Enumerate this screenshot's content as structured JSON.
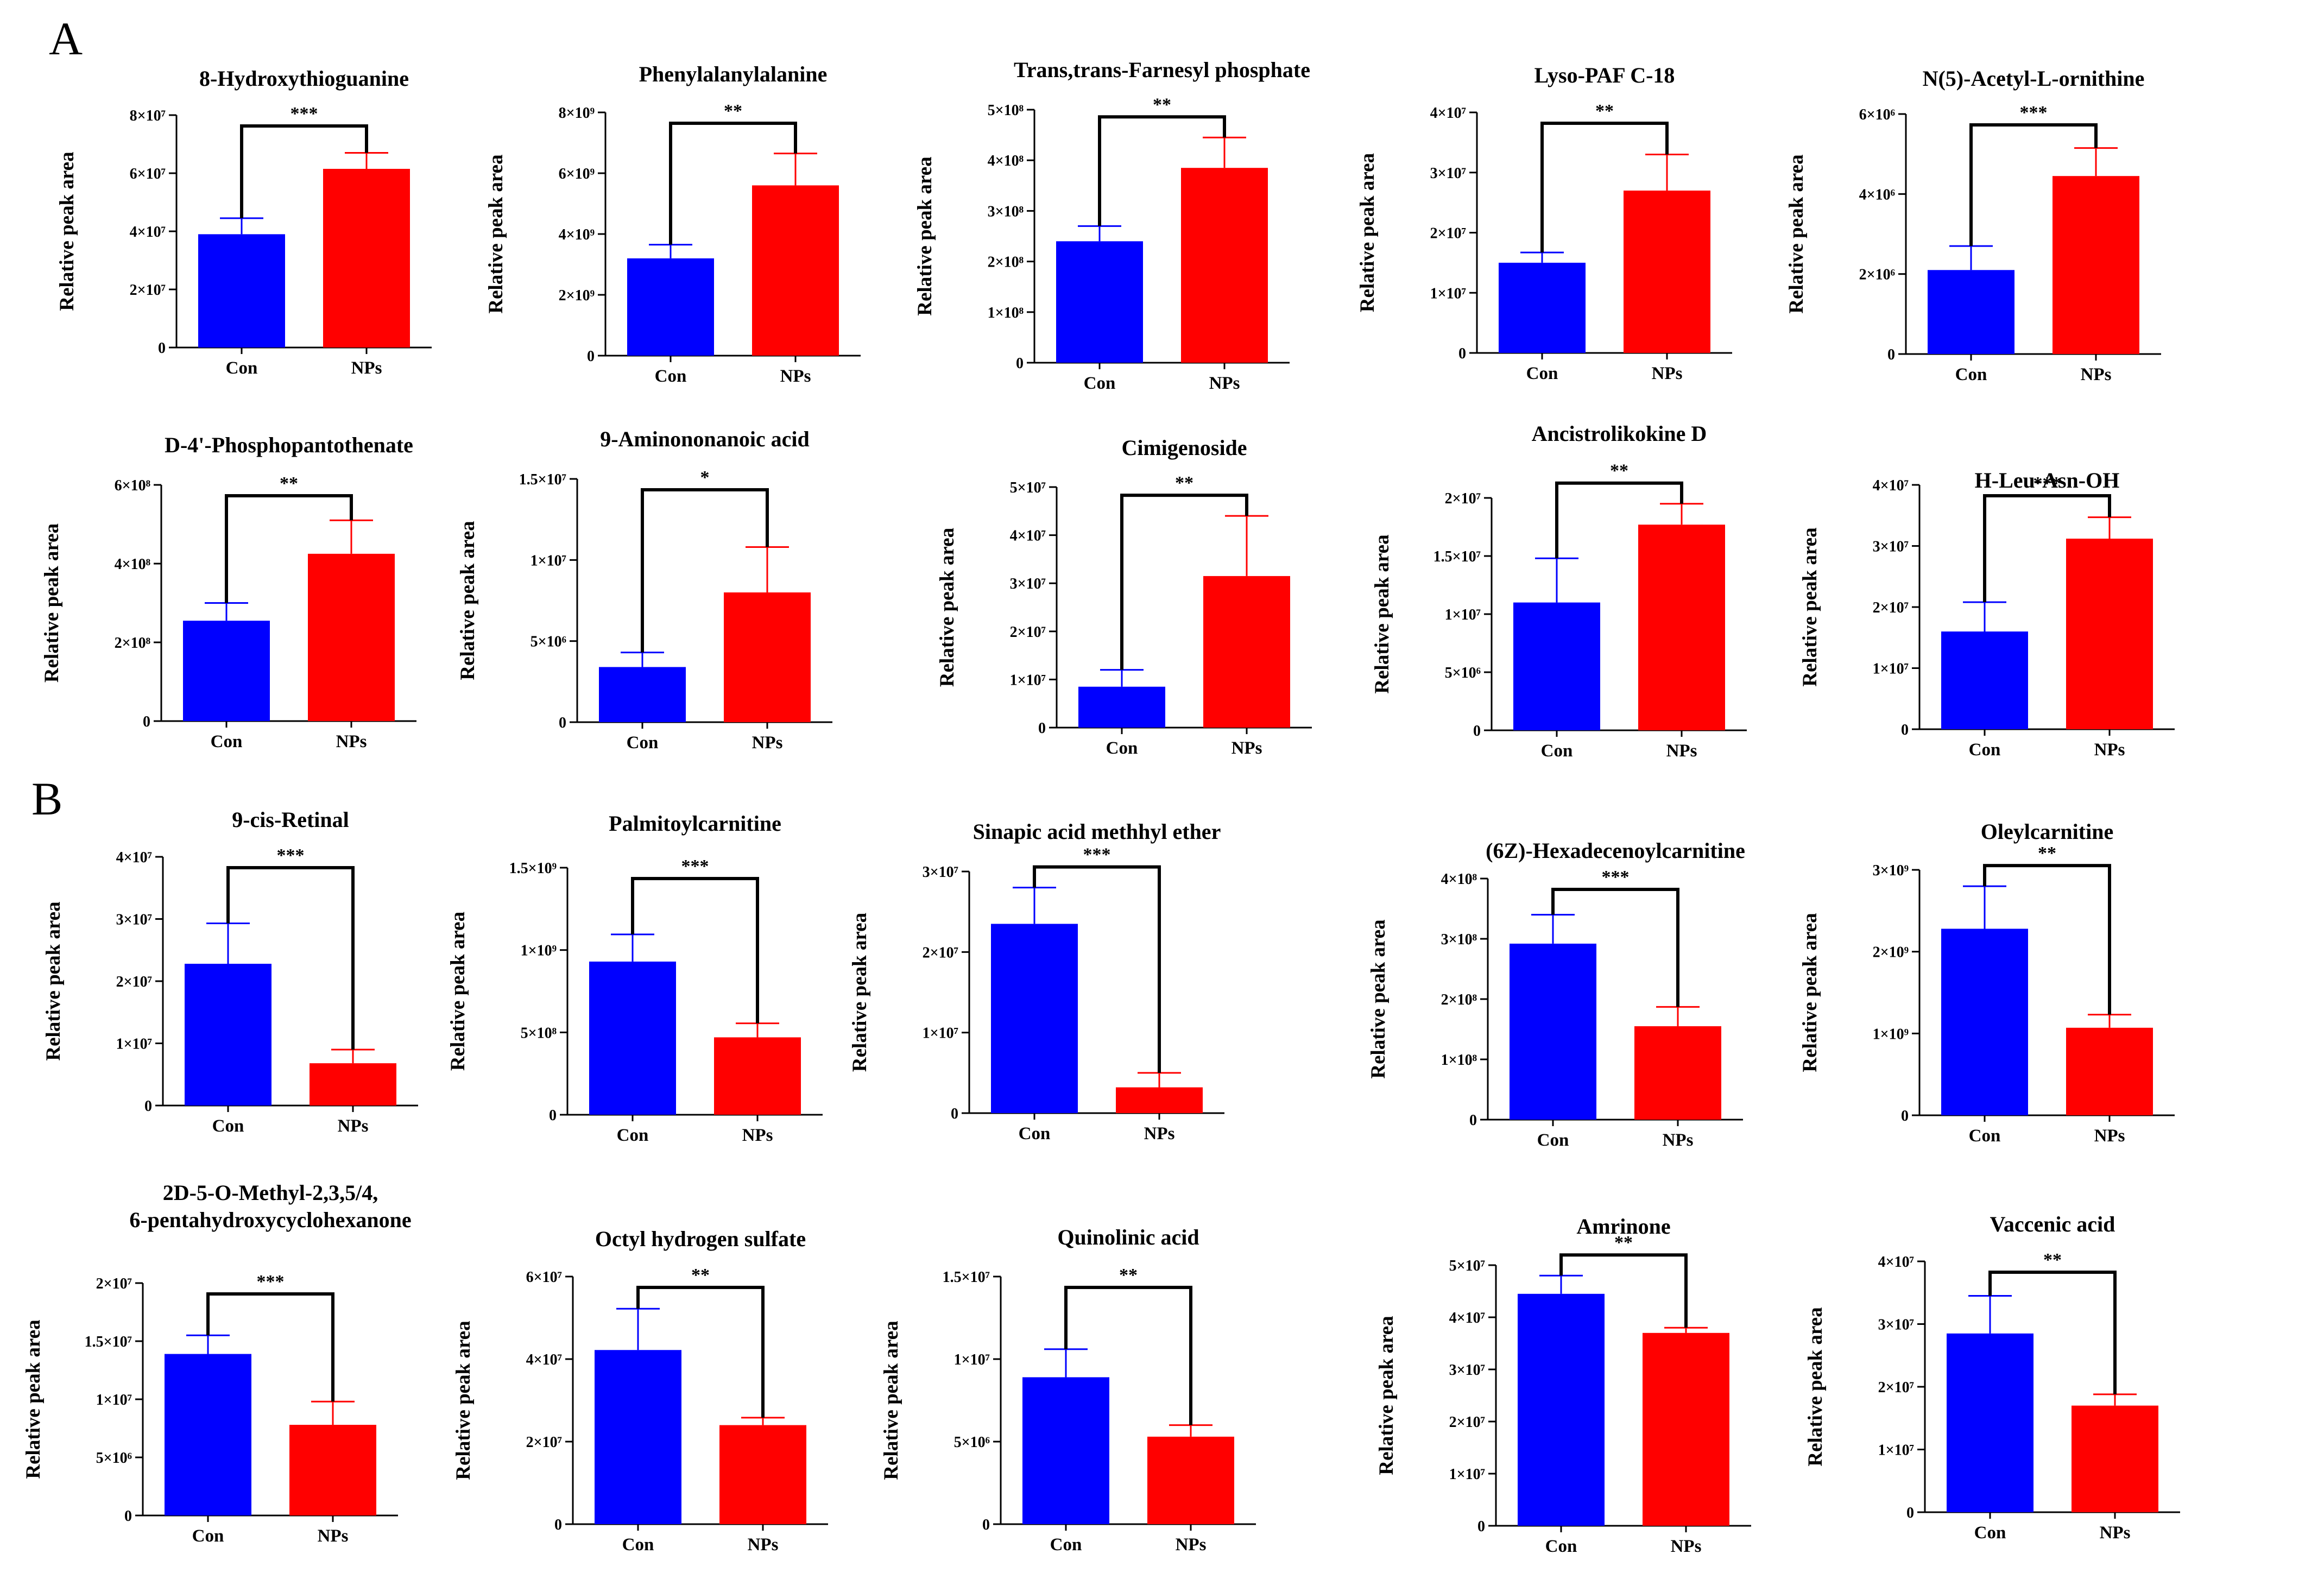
{
  "panel_labels": [
    "A",
    "B"
  ],
  "group_colors": {
    "Con": "#0000ff",
    "NPs": "#ff0000"
  },
  "y_axis_label": "Relative peak area",
  "chart_data": [
    {
      "type": "bar",
      "panel": "A",
      "title": "8-Hydroxythioguanine",
      "title2": "",
      "categories": [
        "Con",
        "NPs"
      ],
      "values": [
        39000000.0,
        61500000.0
      ],
      "errors": [
        5500000.0,
        5500000.0
      ],
      "ylim": [
        0,
        80000000.0
      ],
      "yticks": [
        0,
        20000000.0,
        40000000.0,
        60000000.0,
        80000000.0
      ],
      "ytick_labels": [
        "0",
        "2×10⁷",
        "4×10⁷",
        "6×10⁷",
        "8×10⁷"
      ],
      "significance": "***",
      "ylabel": "Relative peak area"
    },
    {
      "type": "bar",
      "panel": "A",
      "title": "Phenylalanylalanine",
      "title2": "",
      "categories": [
        "Con",
        "NPs"
      ],
      "values": [
        3200000000.0,
        5600000000.0
      ],
      "errors": [
        450000000.0,
        1050000000.0
      ],
      "ylim": [
        0,
        8000000000.0
      ],
      "yticks": [
        0,
        2000000000.0,
        4000000000.0,
        6000000000.0,
        8000000000.0
      ],
      "ytick_labels": [
        "0",
        "2×10⁹",
        "4×10⁹",
        "6×10⁹",
        "8×10⁹"
      ],
      "significance": "**",
      "ylabel": "Relative peak area"
    },
    {
      "type": "bar",
      "panel": "A",
      "title": "Trans,trans-Farnesyl phosphate",
      "title2": "",
      "categories": [
        "Con",
        "NPs"
      ],
      "values": [
        240000000.0,
        385000000.0
      ],
      "errors": [
        30000000.0,
        60000000.0
      ],
      "ylim": [
        0,
        500000000.0
      ],
      "yticks": [
        0,
        100000000.0,
        200000000.0,
        300000000.0,
        400000000.0,
        500000000.0
      ],
      "ytick_labels": [
        "0",
        "1×10⁸",
        "2×10⁸",
        "3×10⁸",
        "4×10⁸",
        "5×10⁸"
      ],
      "significance": "**",
      "ylabel": "Relative peak area"
    },
    {
      "type": "bar",
      "panel": "A",
      "title": "Lyso-PAF C-18",
      "title2": "",
      "categories": [
        "Con",
        "NPs"
      ],
      "values": [
        15000000.0,
        27000000.0
      ],
      "errors": [
        1700000.0,
        6000000.0
      ],
      "ylim": [
        0,
        40000000.0
      ],
      "yticks": [
        0,
        10000000.0,
        20000000.0,
        30000000.0,
        40000000.0
      ],
      "ytick_labels": [
        "0",
        "1×10⁷",
        "2×10⁷",
        "3×10⁷",
        "4×10⁷"
      ],
      "significance": "**",
      "ylabel": "Relative peak area"
    },
    {
      "type": "bar",
      "panel": "A",
      "title": "N(5)-Acetyl-L-ornithine",
      "title2": "",
      "categories": [
        "Con",
        "NPs"
      ],
      "values": [
        2100000.0,
        4450000.0
      ],
      "errors": [
        600000.0,
        700000.0
      ],
      "ylim": [
        0,
        6000000.0
      ],
      "yticks": [
        0,
        2000000.0,
        4000000.0,
        6000000.0
      ],
      "ytick_labels": [
        "0",
        "2×10⁶",
        "4×10⁶",
        "6×10⁶"
      ],
      "significance": "***",
      "ylabel": "Relative peak area"
    },
    {
      "type": "bar",
      "panel": "A",
      "title": "D-4'-Phosphopantothenate",
      "title2": "",
      "categories": [
        "Con",
        "NPs"
      ],
      "values": [
        255000000.0,
        425000000.0
      ],
      "errors": [
        45000000.0,
        85000000.0
      ],
      "ylim": [
        0,
        600000000.0
      ],
      "yticks": [
        0,
        200000000.0,
        400000000.0,
        600000000.0
      ],
      "ytick_labels": [
        "0",
        "2×10⁸",
        "4×10⁸",
        "6×10⁸"
      ],
      "significance": "**",
      "ylabel": "Relative peak area"
    },
    {
      "type": "bar",
      "panel": "A",
      "title": "9-Aminononanoic acid",
      "title2": "",
      "categories": [
        "Con",
        "NPs"
      ],
      "values": [
        3400000.0,
        8000000.0
      ],
      "errors": [
        900000.0,
        2800000.0
      ],
      "ylim": [
        0,
        15000000.0
      ],
      "yticks": [
        0,
        5000000.0,
        10000000.0,
        15000000.0
      ],
      "ytick_labels": [
        "0",
        "5×10⁶",
        "1×10⁷",
        "1.5×10⁷"
      ],
      "significance": "*",
      "ylabel": "Relative peak area"
    },
    {
      "type": "bar",
      "panel": "A",
      "title": "Cimigenoside",
      "title2": "",
      "categories": [
        "Con",
        "NPs"
      ],
      "values": [
        8500000.0,
        31500000.0
      ],
      "errors": [
        3500000.0,
        12500000.0
      ],
      "ylim": [
        0,
        50000000.0
      ],
      "yticks": [
        0,
        10000000.0,
        20000000.0,
        30000000.0,
        40000000.0,
        50000000.0
      ],
      "ytick_labels": [
        "0",
        "1×10⁷",
        "2×10⁷",
        "3×10⁷",
        "4×10⁷",
        "5×10⁷"
      ],
      "significance": "**",
      "ylabel": "Relative peak area"
    },
    {
      "type": "bar",
      "panel": "A",
      "title": "Ancistrolikokine D",
      "title2": "",
      "categories": [
        "Con",
        "NPs"
      ],
      "values": [
        11000000.0,
        17700000.0
      ],
      "errors": [
        3800000.0,
        1800000.0
      ],
      "ylim": [
        0,
        20000000.0
      ],
      "yticks": [
        0,
        5000000.0,
        10000000.0,
        15000000.0,
        20000000.0
      ],
      "ytick_labels": [
        "0",
        "5×10⁶",
        "1×10⁷",
        "1.5×10⁷",
        "2×10⁷"
      ],
      "significance": "**",
      "ylabel": "Relative peak area"
    },
    {
      "type": "bar",
      "panel": "A",
      "title": "H-Leu-Asn-OH",
      "title2": "",
      "categories": [
        "Con",
        "NPs"
      ],
      "values": [
        16000000.0,
        31200000.0
      ],
      "errors": [
        4800000.0,
        3500000.0
      ],
      "ylim": [
        0,
        40000000.0
      ],
      "yticks": [
        0,
        10000000.0,
        20000000.0,
        30000000.0,
        40000000.0
      ],
      "ytick_labels": [
        "0",
        "1×10⁷",
        "2×10⁷",
        "3×10⁷",
        "4×10⁷"
      ],
      "significance": "***",
      "ylabel": "Relative peak area"
    },
    {
      "type": "bar",
      "panel": "B",
      "title": "9-cis-Retinal",
      "title2": "",
      "categories": [
        "Con",
        "NPs"
      ],
      "values": [
        22800000.0,
        6800000.0
      ],
      "errors": [
        6500000.0,
        2200000.0
      ],
      "ylim": [
        0,
        40000000.0
      ],
      "yticks": [
        0,
        10000000.0,
        20000000.0,
        30000000.0,
        40000000.0
      ],
      "ytick_labels": [
        "0",
        "1×10⁷",
        "2×10⁷",
        "3×10⁷",
        "4×10⁷"
      ],
      "significance": "***",
      "ylabel": "Relative peak area"
    },
    {
      "type": "bar",
      "panel": "B",
      "title": "Palmitoylcarnitine",
      "title2": "",
      "categories": [
        "Con",
        "NPs"
      ],
      "values": [
        930000000.0,
        470000000.0
      ],
      "errors": [
        165000000.0,
        85000000.0
      ],
      "ylim": [
        0,
        1500000000.0
      ],
      "yticks": [
        0,
        500000000.0,
        1000000000.0,
        1500000000.0
      ],
      "ytick_labels": [
        "0",
        "5×10⁸",
        "1×10⁹",
        "1.5×10⁹"
      ],
      "significance": "***",
      "ylabel": "Relative peak area"
    },
    {
      "type": "bar",
      "panel": "B",
      "title": "Sinapic acid methhyl ether",
      "title2": "",
      "categories": [
        "Con",
        "NPs"
      ],
      "values": [
        23500000.0,
        3200000.0
      ],
      "errors": [
        4500000.0,
        1800000.0
      ],
      "ylim": [
        0,
        30000000.0
      ],
      "yticks": [
        0,
        10000000.0,
        20000000.0,
        30000000.0
      ],
      "ytick_labels": [
        "0",
        "1×10⁷",
        "2×10⁷",
        "3×10⁷"
      ],
      "significance": "***",
      "ylabel": "Relative peak area"
    },
    {
      "type": "bar",
      "panel": "B",
      "title": "(6Z)-Hexadecenoylcarnitine",
      "title2": "",
      "categories": [
        "Con",
        "NPs"
      ],
      "values": [
        292000000.0,
        155000000.0
      ],
      "errors": [
        48000000.0,
        32000000.0
      ],
      "ylim": [
        0,
        400000000.0
      ],
      "yticks": [
        0,
        100000000.0,
        200000000.0,
        300000000.0,
        400000000.0
      ],
      "ytick_labels": [
        "0",
        "1×10⁸",
        "2×10⁸",
        "3×10⁸",
        "4×10⁸"
      ],
      "significance": "***",
      "ylabel": "Relative peak area"
    },
    {
      "type": "bar",
      "panel": "B",
      "title": "Oleylcarnitine",
      "title2": "",
      "categories": [
        "Con",
        "NPs"
      ],
      "values": [
        2280000000.0,
        1070000000.0
      ],
      "errors": [
        520000000.0,
        160000000.0
      ],
      "ylim": [
        0,
        3000000000.0
      ],
      "yticks": [
        0,
        1000000000.0,
        2000000000.0,
        3000000000.0
      ],
      "ytick_labels": [
        "0",
        "1×10⁹",
        "2×10⁹",
        "3×10⁹"
      ],
      "significance": "**",
      "ylabel": "Relative peak area"
    },
    {
      "type": "bar",
      "panel": "B",
      "title": "2D-5-O-Methyl-2,3,5/4,",
      "title2": "6-pentahydroxycyclohexanone",
      "categories": [
        "Con",
        "NPs"
      ],
      "values": [
        13900000.0,
        7800000.0
      ],
      "errors": [
        1600000.0,
        2000000.0
      ],
      "ylim": [
        0,
        20000000.0
      ],
      "yticks": [
        0,
        5000000.0,
        10000000.0,
        15000000.0,
        20000000.0
      ],
      "ytick_labels": [
        "0",
        "5×10⁶",
        "1×10⁷",
        "1.5×10⁷",
        "2×10⁷"
      ],
      "significance": "***",
      "ylabel": "Relative peak area"
    },
    {
      "type": "bar",
      "panel": "B",
      "title": "Octyl hydrogen sulfate",
      "title2": "",
      "categories": [
        "Con",
        "NPs"
      ],
      "values": [
        42200000.0,
        24000000.0
      ],
      "errors": [
        10000000.0,
        1800000.0
      ],
      "ylim": [
        0,
        60000000.0
      ],
      "yticks": [
        0,
        20000000.0,
        40000000.0,
        60000000.0
      ],
      "ytick_labels": [
        "0",
        "2×10⁷",
        "4×10⁷",
        "6×10⁷"
      ],
      "significance": "**",
      "ylabel": "Relative peak area"
    },
    {
      "type": "bar",
      "panel": "B",
      "title": "Quinolinic acid",
      "title2": "",
      "categories": [
        "Con",
        "NPs"
      ],
      "values": [
        8900000.0,
        5300000.0
      ],
      "errors": [
        1700000.0,
        700000.0
      ],
      "ylim": [
        0,
        15000000.0
      ],
      "yticks": [
        0,
        5000000.0,
        10000000.0,
        15000000.0
      ],
      "ytick_labels": [
        "0",
        "5×10⁶",
        "1×10⁷",
        "1.5×10⁷"
      ],
      "significance": "**",
      "ylabel": "Relative peak area"
    },
    {
      "type": "bar",
      "panel": "B",
      "title": "Amrinone",
      "title2": "",
      "categories": [
        "Con",
        "NPs"
      ],
      "values": [
        44500000.0,
        37000000.0
      ],
      "errors": [
        3500000.0,
        1000000.0
      ],
      "ylim": [
        0,
        50000000.0
      ],
      "yticks": [
        0,
        10000000.0,
        20000000.0,
        30000000.0,
        40000000.0,
        50000000.0
      ],
      "ytick_labels": [
        "0",
        "1×10⁷",
        "2×10⁷",
        "3×10⁷",
        "4×10⁷",
        "5×10⁷"
      ],
      "significance": "**",
      "ylabel": "Relative peak area"
    },
    {
      "type": "bar",
      "panel": "B",
      "title": "Vaccenic acid",
      "title2": "",
      "categories": [
        "Con",
        "NPs"
      ],
      "values": [
        28500000.0,
        17000000.0
      ],
      "errors": [
        6000000.0,
        1800000.0
      ],
      "ylim": [
        0,
        40000000.0
      ],
      "yticks": [
        0,
        10000000.0,
        20000000.0,
        30000000.0,
        40000000.0
      ],
      "ytick_labels": [
        "0",
        "1×10⁷",
        "2×10⁷",
        "3×10⁷",
        "4×10⁷"
      ],
      "significance": "**",
      "ylabel": "Relative peak area"
    }
  ]
}
